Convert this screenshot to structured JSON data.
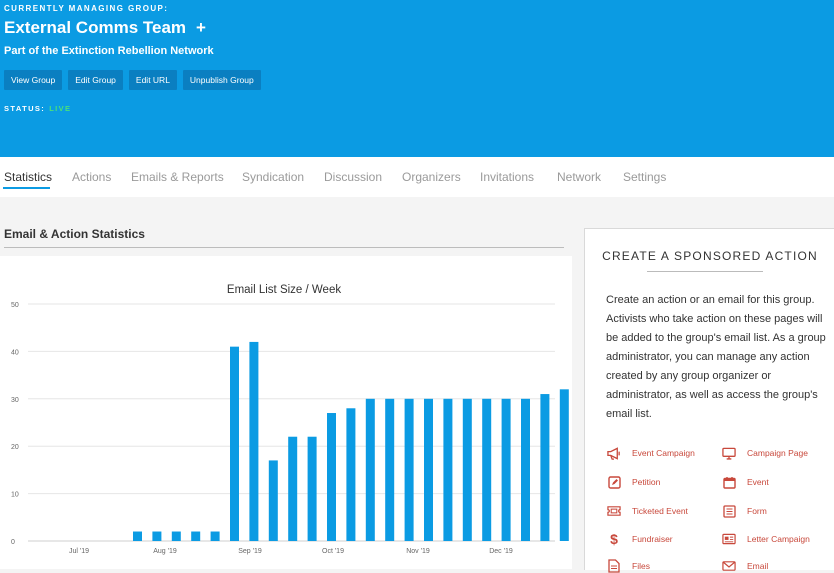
{
  "header": {
    "eyebrow": "CURRENTLY MANAGING GROUP:",
    "group_name": "External Comms Team",
    "plus": "+",
    "network": "Part of the Extinction Rebellion Network",
    "buttons": [
      "View Group",
      "Edit Group",
      "Edit URL",
      "Unpublish Group"
    ],
    "status_label": "STATUS:",
    "status_value": "LIVE"
  },
  "tabs": [
    "Statistics",
    "Actions",
    "Emails & Reports",
    "Syndication",
    "Discussion",
    "Organizers",
    "Invitations",
    "Network",
    "Settings"
  ],
  "section_title": "Email & Action Statistics",
  "chart_data": {
    "type": "bar",
    "title": "Email List Size  /  Week",
    "ylim": [
      0,
      50
    ],
    "yticks": [
      0,
      10,
      20,
      30,
      40,
      50
    ],
    "xtick_labels": [
      "Jul '19",
      "Aug '19",
      "Sep '19",
      "Oct '19",
      "Nov '19",
      "Dec '19"
    ],
    "values": [
      2,
      2,
      2,
      2,
      2,
      41,
      42,
      17,
      22,
      22,
      27,
      28,
      30,
      30,
      30,
      30,
      30,
      30,
      30,
      30,
      30,
      31,
      32
    ],
    "color": "#0b9be3"
  },
  "panel": {
    "title": "CREATE A SPONSORED ACTION",
    "description": "Create an action or an email for this group. Activists who take action on these pages will be added to the group's email list. As a group administrator, you can manage any action created by any group organizer or administrator, as well as access the group's email list.",
    "actions": [
      {
        "label": "Event Campaign",
        "icon": "megaphone-icon"
      },
      {
        "label": "Campaign Page",
        "icon": "monitor-icon"
      },
      {
        "label": "Petition",
        "icon": "pencil-icon"
      },
      {
        "label": "Event",
        "icon": "calendar-icon"
      },
      {
        "label": "Ticketed Event",
        "icon": "ticket-icon"
      },
      {
        "label": "Form",
        "icon": "form-icon"
      },
      {
        "label": "Fundraiser",
        "icon": "dollar-icon"
      },
      {
        "label": "Letter Campaign",
        "icon": "letter-icon"
      },
      {
        "label": "Files",
        "icon": "file-icon"
      },
      {
        "label": "Email",
        "icon": "envelope-icon"
      }
    ],
    "accent": "#c8483b"
  }
}
